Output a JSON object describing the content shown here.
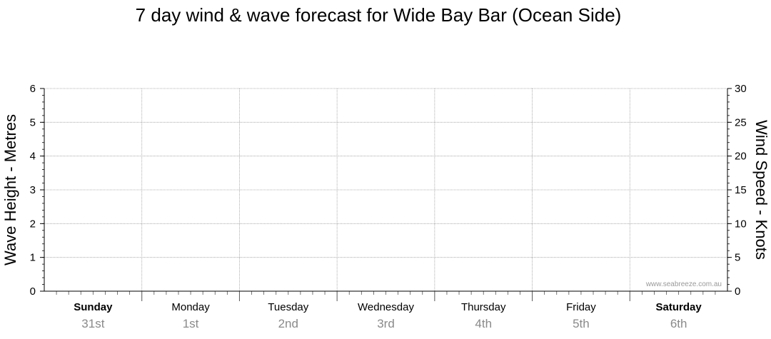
{
  "chart_data": {
    "type": "line",
    "title": "7 day wind & wave forecast for Wide Bay Bar (Ocean Side)",
    "y_left": {
      "label": "Wave Height - Metres",
      "ylim": [
        0,
        6
      ],
      "ticks": [
        "0",
        "1",
        "2",
        "3",
        "4",
        "5",
        "6"
      ]
    },
    "y_right": {
      "label": "Wind Speed - Knots",
      "ylim": [
        0,
        30
      ],
      "ticks": [
        "0",
        "5",
        "10",
        "15",
        "20",
        "25",
        "30"
      ]
    },
    "days": [
      {
        "name": "Sunday",
        "date": "31st",
        "bold": true
      },
      {
        "name": "Monday",
        "date": "1st",
        "bold": false
      },
      {
        "name": "Tuesday",
        "date": "2nd",
        "bold": false
      },
      {
        "name": "Wednesday",
        "date": "3rd",
        "bold": false
      },
      {
        "name": "Thursday",
        "date": "4th",
        "bold": false
      },
      {
        "name": "Friday",
        "date": "5th",
        "bold": false
      },
      {
        "name": "Saturday",
        "date": "6th",
        "bold": true
      }
    ],
    "series": [],
    "grid": true,
    "watermark": "www.seabreeze.com.au"
  }
}
